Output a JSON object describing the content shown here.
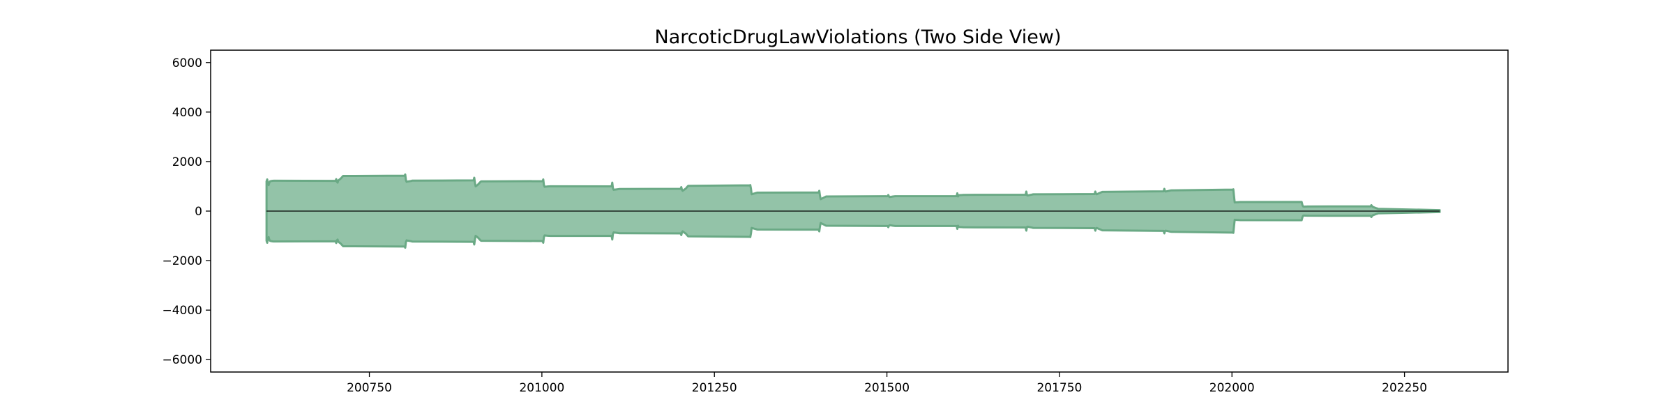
{
  "chart_data": {
    "type": "area",
    "title": "NarcoticDrugLawViolations (Two Side View)",
    "xlabel": "",
    "ylabel": "",
    "xlim": [
      200520,
      202400
    ],
    "ylim": [
      -6500,
      6500
    ],
    "x_ticks": [
      200750,
      201000,
      201250,
      201500,
      201750,
      202000,
      202250
    ],
    "y_ticks": [
      6000,
      4000,
      2000,
      0,
      -2000,
      -4000,
      -6000
    ],
    "y_tick_labels": [
      "6000",
      "4000",
      "2000",
      "0",
      "−2000",
      "−4000",
      "−6000"
    ],
    "grid": false,
    "legend": "none",
    "colors": {
      "fill": "#93c3a8",
      "edge": "#6aa985",
      "axis": "#000000",
      "center_line": "#000000"
    },
    "series": [
      {
        "x": [
          200601,
          200602,
          200603,
          200604,
          200605,
          200606,
          200607,
          200608,
          200609,
          200610,
          200611,
          200612,
          200701,
          200702,
          200703,
          200704,
          200705,
          200706,
          200707,
          200708,
          200709,
          200710,
          200711,
          200712,
          200801,
          200802,
          200803,
          200804,
          200805,
          200806,
          200807,
          200808,
          200809,
          200810,
          200811,
          200812,
          200901,
          200902,
          200903,
          200904,
          200905,
          200906,
          200907,
          200908,
          200909,
          200910,
          200911,
          200912,
          201001,
          201002,
          201003,
          201004,
          201005,
          201006,
          201007,
          201008,
          201009,
          201010,
          201011,
          201012,
          201101,
          201102,
          201103,
          201104,
          201105,
          201106,
          201107,
          201108,
          201109,
          201110,
          201111,
          201112,
          201201,
          201202,
          201203,
          201204,
          201205,
          201206,
          201207,
          201208,
          201209,
          201210,
          201211,
          201212,
          201301,
          201302,
          201303,
          201304,
          201305,
          201306,
          201307,
          201308,
          201309,
          201310,
          201311,
          201312,
          201401,
          201402,
          201403,
          201404,
          201405,
          201406,
          201407,
          201408,
          201409,
          201410,
          201411,
          201412,
          201501,
          201502,
          201503,
          201504,
          201505,
          201506,
          201507,
          201508,
          201509,
          201510,
          201511,
          201512,
          201601,
          201602,
          201603,
          201604,
          201605,
          201606,
          201607,
          201608,
          201609,
          201610,
          201611,
          201612,
          201701,
          201702,
          201703,
          201704,
          201705,
          201706,
          201707,
          201708,
          201709,
          201710,
          201711,
          201712,
          201801,
          201802,
          201803,
          201804,
          201805,
          201806,
          201807,
          201808,
          201809,
          201810,
          201811,
          201812,
          201901,
          201902,
          201903,
          201904,
          201905,
          201906,
          201907,
          201908,
          201909,
          201910,
          201911,
          201912,
          202001,
          202002,
          202003,
          202004,
          202005,
          202006,
          202007,
          202008,
          202009,
          202010,
          202011,
          202012,
          202101,
          202102,
          202103,
          202104,
          202105,
          202106,
          202107,
          202108,
          202109,
          202110,
          202111,
          202112,
          202201,
          202202,
          202203,
          202204,
          202205,
          202206,
          202207,
          202208,
          202209,
          202210,
          202211,
          202212,
          202301
        ],
        "values": [
          1200,
          1280,
          1100,
          1050,
          1150,
          1200,
          1210,
          1215,
          1220,
          1225,
          1226,
          1228,
          1220,
          1290,
          1180,
          1150,
          1240,
          1260,
          1280,
          1300,
          1330,
          1360,
          1390,
          1420,
          1430,
          1480,
          1250,
          1180,
          1190,
          1195,
          1200,
          1205,
          1210,
          1215,
          1220,
          1230,
          1240,
          1350,
          1150,
          1000,
          1020,
          1040,
          1060,
          1090,
          1120,
          1150,
          1180,
          1200,
          1210,
          1280,
          1050,
          980,
          985,
          990,
          992,
          995,
          997,
          999,
          1000,
          1002,
          1000,
          1150,
          920,
          860,
          864,
          868,
          872,
          876,
          880,
          884,
          888,
          892,
          900,
          970,
          860,
          820,
          840,
          860,
          880,
          900,
          920,
          960,
          990,
          1020,
          1040,
          1050,
          900,
          680,
          688,
          696,
          704,
          712,
          720,
          728,
          736,
          745,
          750,
          820,
          620,
          480,
          494,
          508,
          522,
          536,
          550,
          564,
          578,
          592,
          600,
          650,
          590,
          570,
          574,
          578,
          582,
          586,
          590,
          594,
          598,
          602,
          600,
          720,
          590,
          640,
          642,
          644,
          646,
          648,
          650,
          652,
          654,
          656,
          660,
          790,
          640,
          630,
          636,
          642,
          648,
          654,
          660,
          666,
          672,
          678,
          690,
          790,
          700,
          680,
          692,
          704,
          716,
          728,
          740,
          752,
          764,
          776,
          800,
          900,
          800,
          790,
          796,
          802,
          808,
          814,
          820,
          826,
          832,
          838,
          870,
          880,
          600,
          350,
          352,
          354,
          356,
          358,
          360,
          362,
          364,
          366,
          370,
          260,
          190,
          180,
          181,
          182,
          183,
          184,
          185,
          186,
          187,
          188,
          190,
          240,
          200,
          170,
          160,
          150,
          140,
          130,
          120,
          110,
          100,
          90,
          40
        ]
      }
    ]
  }
}
